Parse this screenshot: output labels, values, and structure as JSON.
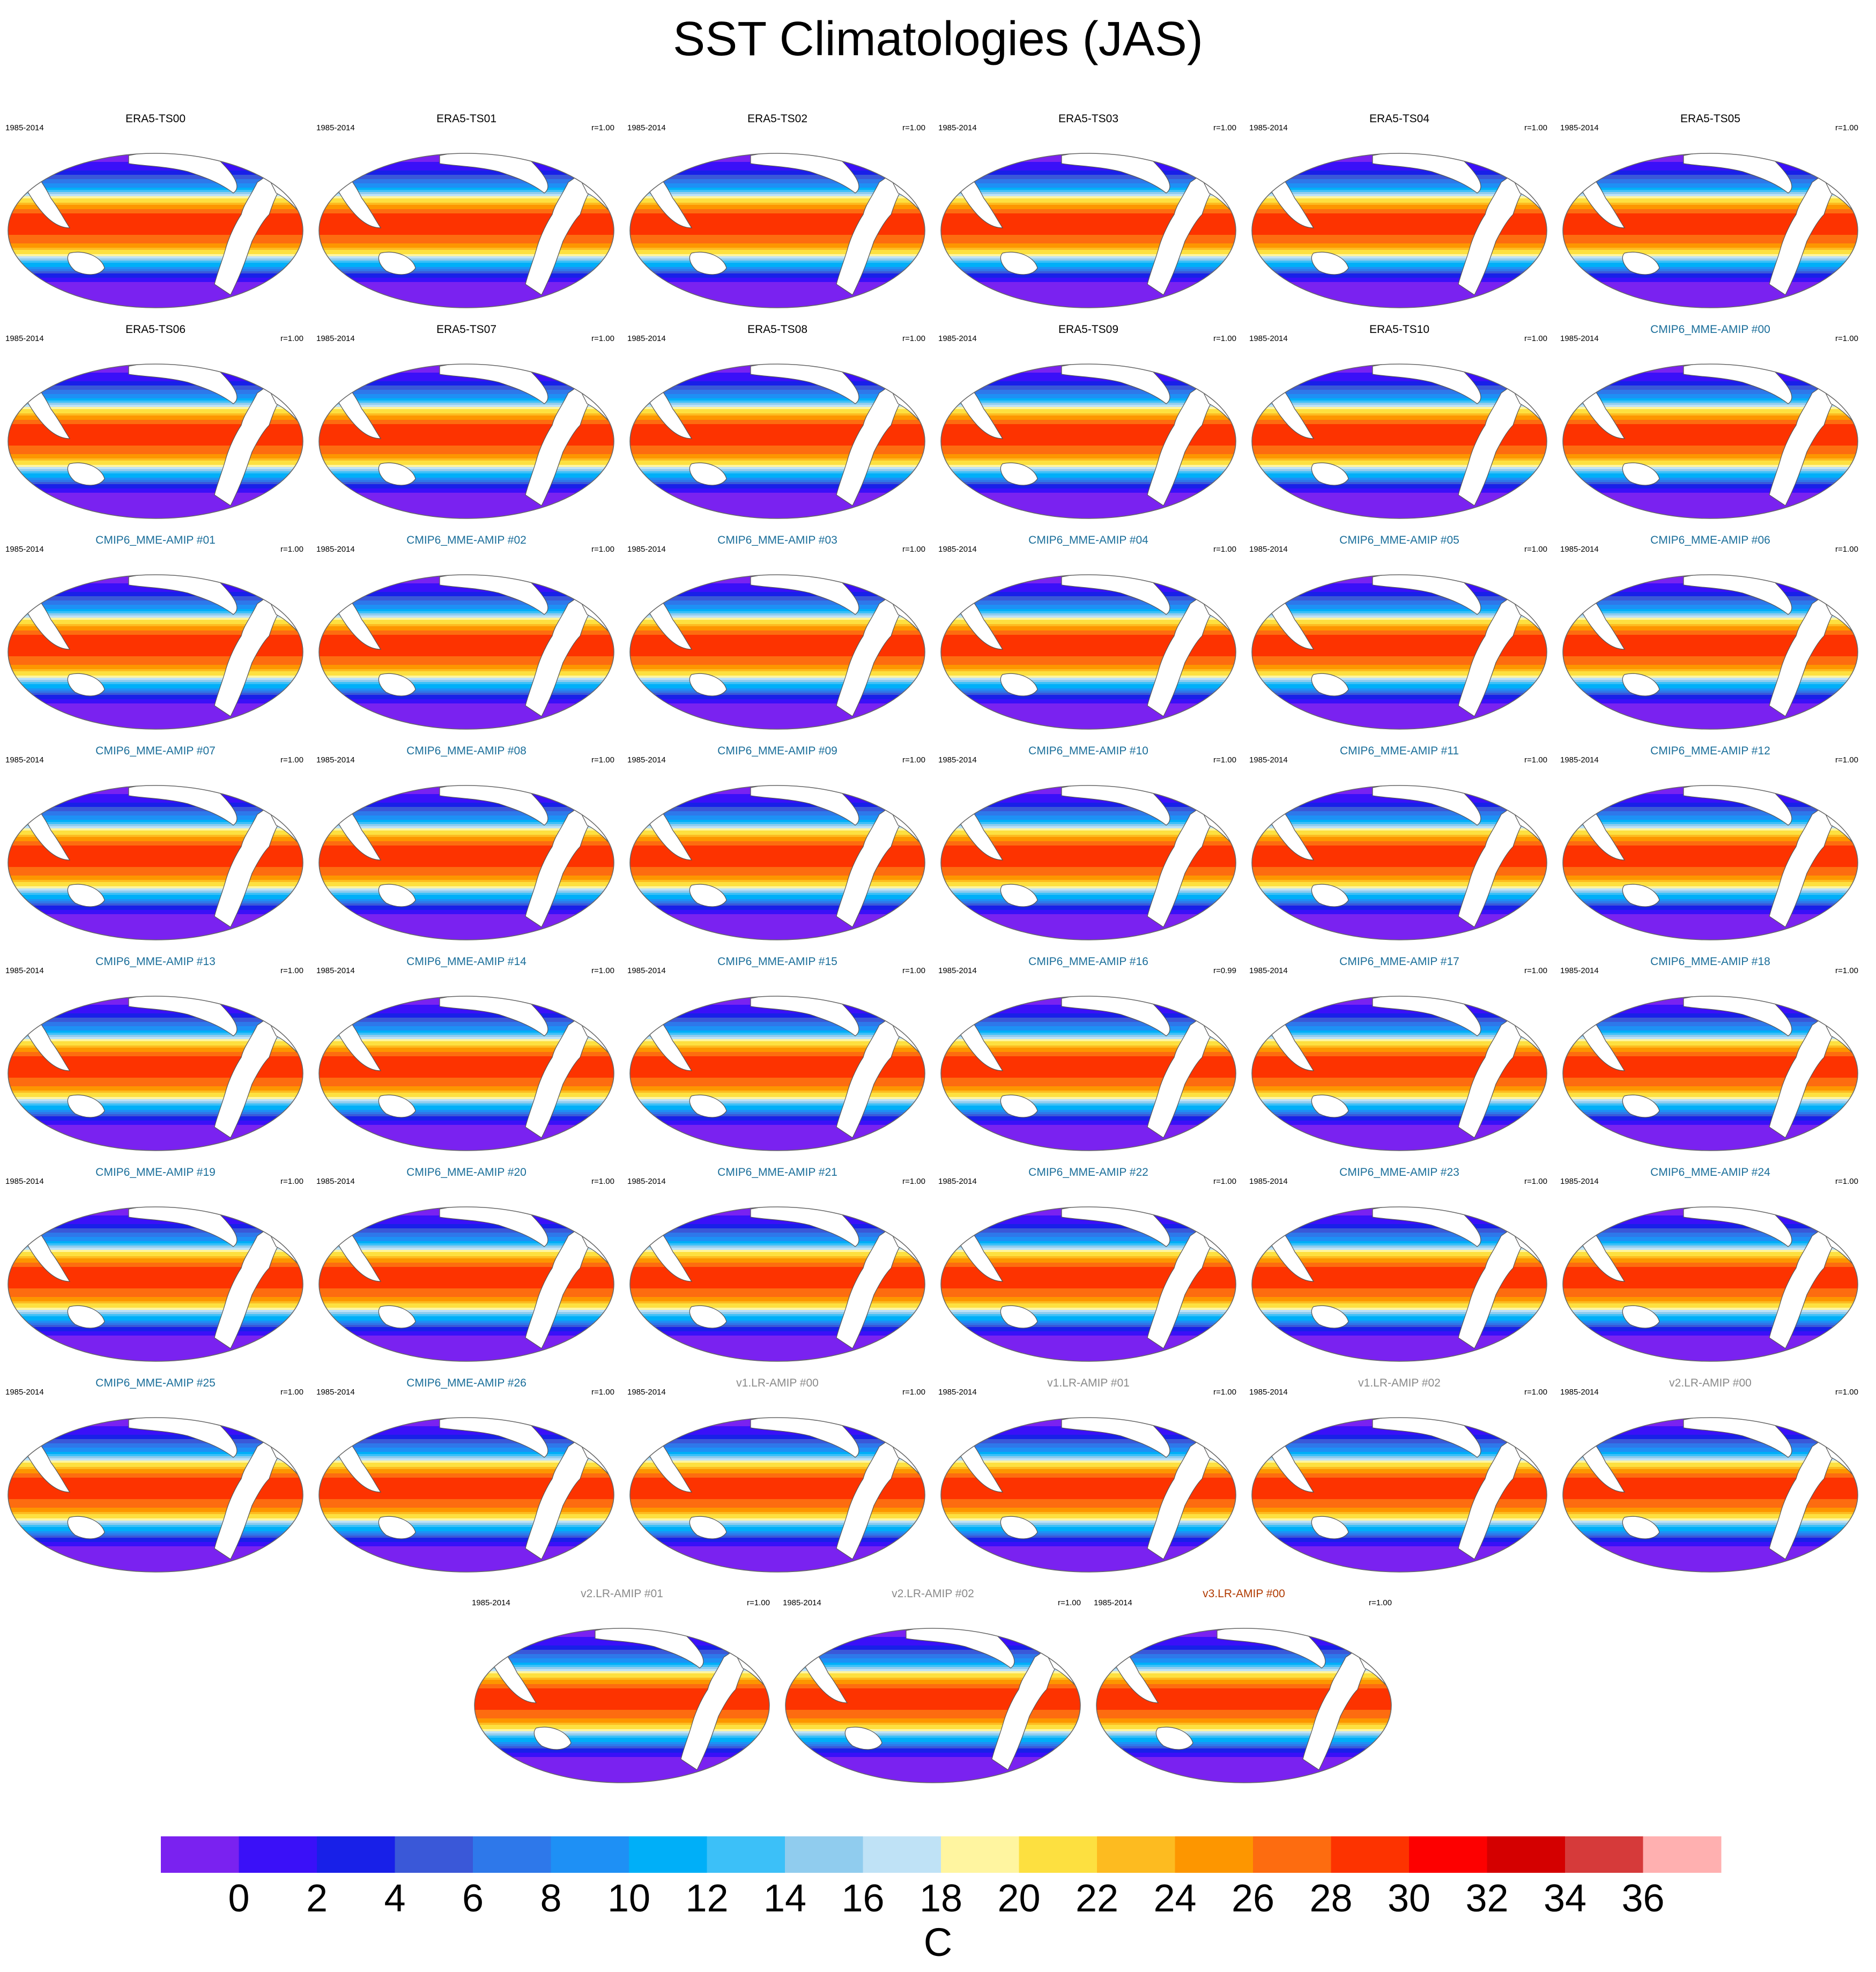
{
  "title": "SST Climatologies (JAS)",
  "period": "1985-2014",
  "colors": {
    "era5_title": "#000000",
    "cmip6_title": "#1a6e9a",
    "v1_title": "#8a8a8a",
    "v2_title": "#8a8a8a",
    "v3_title": "#b03a00",
    "land": "#ffffff",
    "coast": "#555555"
  },
  "panels": [
    {
      "title": "ERA5-TS00",
      "corr": "",
      "group": "era5"
    },
    {
      "title": "ERA5-TS01",
      "corr": "r=1.00",
      "group": "era5"
    },
    {
      "title": "ERA5-TS02",
      "corr": "r=1.00",
      "group": "era5"
    },
    {
      "title": "ERA5-TS03",
      "corr": "r=1.00",
      "group": "era5"
    },
    {
      "title": "ERA5-TS04",
      "corr": "r=1.00",
      "group": "era5"
    },
    {
      "title": "ERA5-TS05",
      "corr": "r=1.00",
      "group": "era5"
    },
    {
      "title": "ERA5-TS06",
      "corr": "r=1.00",
      "group": "era5"
    },
    {
      "title": "ERA5-TS07",
      "corr": "r=1.00",
      "group": "era5"
    },
    {
      "title": "ERA5-TS08",
      "corr": "r=1.00",
      "group": "era5"
    },
    {
      "title": "ERA5-TS09",
      "corr": "r=1.00",
      "group": "era5"
    },
    {
      "title": "ERA5-TS10",
      "corr": "r=1.00",
      "group": "era5"
    },
    {
      "title": "CMIP6_MME-AMIP  #00",
      "corr": "r=1.00",
      "group": "cmip6"
    },
    {
      "title": "CMIP6_MME-AMIP  #01",
      "corr": "r=1.00",
      "group": "cmip6"
    },
    {
      "title": "CMIP6_MME-AMIP  #02",
      "corr": "r=1.00",
      "group": "cmip6"
    },
    {
      "title": "CMIP6_MME-AMIP  #03",
      "corr": "r=1.00",
      "group": "cmip6"
    },
    {
      "title": "CMIP6_MME-AMIP  #04",
      "corr": "r=1.00",
      "group": "cmip6"
    },
    {
      "title": "CMIP6_MME-AMIP  #05",
      "corr": "r=1.00",
      "group": "cmip6"
    },
    {
      "title": "CMIP6_MME-AMIP  #06",
      "corr": "r=1.00",
      "group": "cmip6"
    },
    {
      "title": "CMIP6_MME-AMIP  #07",
      "corr": "r=1.00",
      "group": "cmip6"
    },
    {
      "title": "CMIP6_MME-AMIP  #08",
      "corr": "r=1.00",
      "group": "cmip6"
    },
    {
      "title": "CMIP6_MME-AMIP  #09",
      "corr": "r=1.00",
      "group": "cmip6"
    },
    {
      "title": "CMIP6_MME-AMIP  #10",
      "corr": "r=1.00",
      "group": "cmip6"
    },
    {
      "title": "CMIP6_MME-AMIP  #11",
      "corr": "r=1.00",
      "group": "cmip6"
    },
    {
      "title": "CMIP6_MME-AMIP  #12",
      "corr": "r=1.00",
      "group": "cmip6"
    },
    {
      "title": "CMIP6_MME-AMIP  #13",
      "corr": "r=1.00",
      "group": "cmip6"
    },
    {
      "title": "CMIP6_MME-AMIP  #14",
      "corr": "r=1.00",
      "group": "cmip6"
    },
    {
      "title": "CMIP6_MME-AMIP  #15",
      "corr": "r=1.00",
      "group": "cmip6"
    },
    {
      "title": "CMIP6_MME-AMIP  #16",
      "corr": "r=0.99",
      "group": "cmip6"
    },
    {
      "title": "CMIP6_MME-AMIP  #17",
      "corr": "r=1.00",
      "group": "cmip6"
    },
    {
      "title": "CMIP6_MME-AMIP  #18",
      "corr": "r=1.00",
      "group": "cmip6"
    },
    {
      "title": "CMIP6_MME-AMIP  #19",
      "corr": "r=1.00",
      "group": "cmip6"
    },
    {
      "title": "CMIP6_MME-AMIP  #20",
      "corr": "r=1.00",
      "group": "cmip6"
    },
    {
      "title": "CMIP6_MME-AMIP  #21",
      "corr": "r=1.00",
      "group": "cmip6"
    },
    {
      "title": "CMIP6_MME-AMIP  #22",
      "corr": "r=1.00",
      "group": "cmip6"
    },
    {
      "title": "CMIP6_MME-AMIP  #23",
      "corr": "r=1.00",
      "group": "cmip6"
    },
    {
      "title": "CMIP6_MME-AMIP  #24",
      "corr": "r=1.00",
      "group": "cmip6"
    },
    {
      "title": "CMIP6_MME-AMIP  #25",
      "corr": "r=1.00",
      "group": "cmip6"
    },
    {
      "title": "CMIP6_MME-AMIP  #26",
      "corr": "r=1.00",
      "group": "cmip6"
    },
    {
      "title": "v1.LR-AMIP  #00",
      "corr": "r=1.00",
      "group": "v1"
    },
    {
      "title": "v1.LR-AMIP  #01",
      "corr": "r=1.00",
      "group": "v1"
    },
    {
      "title": "v1.LR-AMIP  #02",
      "corr": "r=1.00",
      "group": "v1"
    },
    {
      "title": "v2.LR-AMIP  #00",
      "corr": "r=1.00",
      "group": "v2"
    },
    {
      "title": "v2.LR-AMIP  #01",
      "corr": "r=1.00",
      "group": "v2"
    },
    {
      "title": "v2.LR-AMIP  #02",
      "corr": "r=1.00",
      "group": "v2"
    },
    {
      "title": "v3.LR-AMIP  #00",
      "corr": "r=1.00",
      "group": "v3"
    }
  ],
  "chart_data": {
    "type": "heatmap",
    "title": "SST Climatologies (JAS)",
    "projection": "Robinson-like global, Pacific-centered",
    "units": "C",
    "colorbar": {
      "label": "C",
      "ticks": [
        "0",
        "2",
        "4",
        "6",
        "8",
        "10",
        "12",
        "14",
        "16",
        "18",
        "20",
        "22",
        "24",
        "26",
        "28",
        "30",
        "32",
        "34",
        "36"
      ],
      "levels": [
        0,
        2,
        4,
        6,
        8,
        10,
        12,
        14,
        16,
        18,
        20,
        22,
        24,
        26,
        28,
        30,
        32,
        34,
        36
      ],
      "colors": [
        "#7a22f0",
        "#3a10f8",
        "#1820e8",
        "#3a58d8",
        "#2e78ea",
        "#1e90f5",
        "#00aff8",
        "#3cc0f8",
        "#90ccee",
        "#bfe2f6",
        "#fff5a0",
        "#fde040",
        "#fdbb20",
        "#fd9600",
        "#fd6c10",
        "#fd3300",
        "#fd0000",
        "#d40000",
        "#d63a3a",
        "#ffb0b0"
      ]
    },
    "zonal_profile": {
      "lat": [
        -90,
        -75,
        -65,
        -58,
        -52,
        -47,
        -42,
        -37,
        -32,
        -26,
        -20,
        -12,
        0,
        10,
        20,
        26,
        32,
        37,
        42,
        47,
        52,
        58,
        64,
        72,
        90
      ],
      "sst": [
        -1.5,
        -1.5,
        -1.2,
        0.5,
        3,
        6,
        9.5,
        13,
        16.5,
        20.5,
        24,
        27,
        28.5,
        29,
        28,
        26,
        23,
        20,
        16,
        12,
        9,
        7,
        4.5,
        1.5,
        -1.5
      ]
    },
    "grid": false,
    "legend": "bottom"
  }
}
